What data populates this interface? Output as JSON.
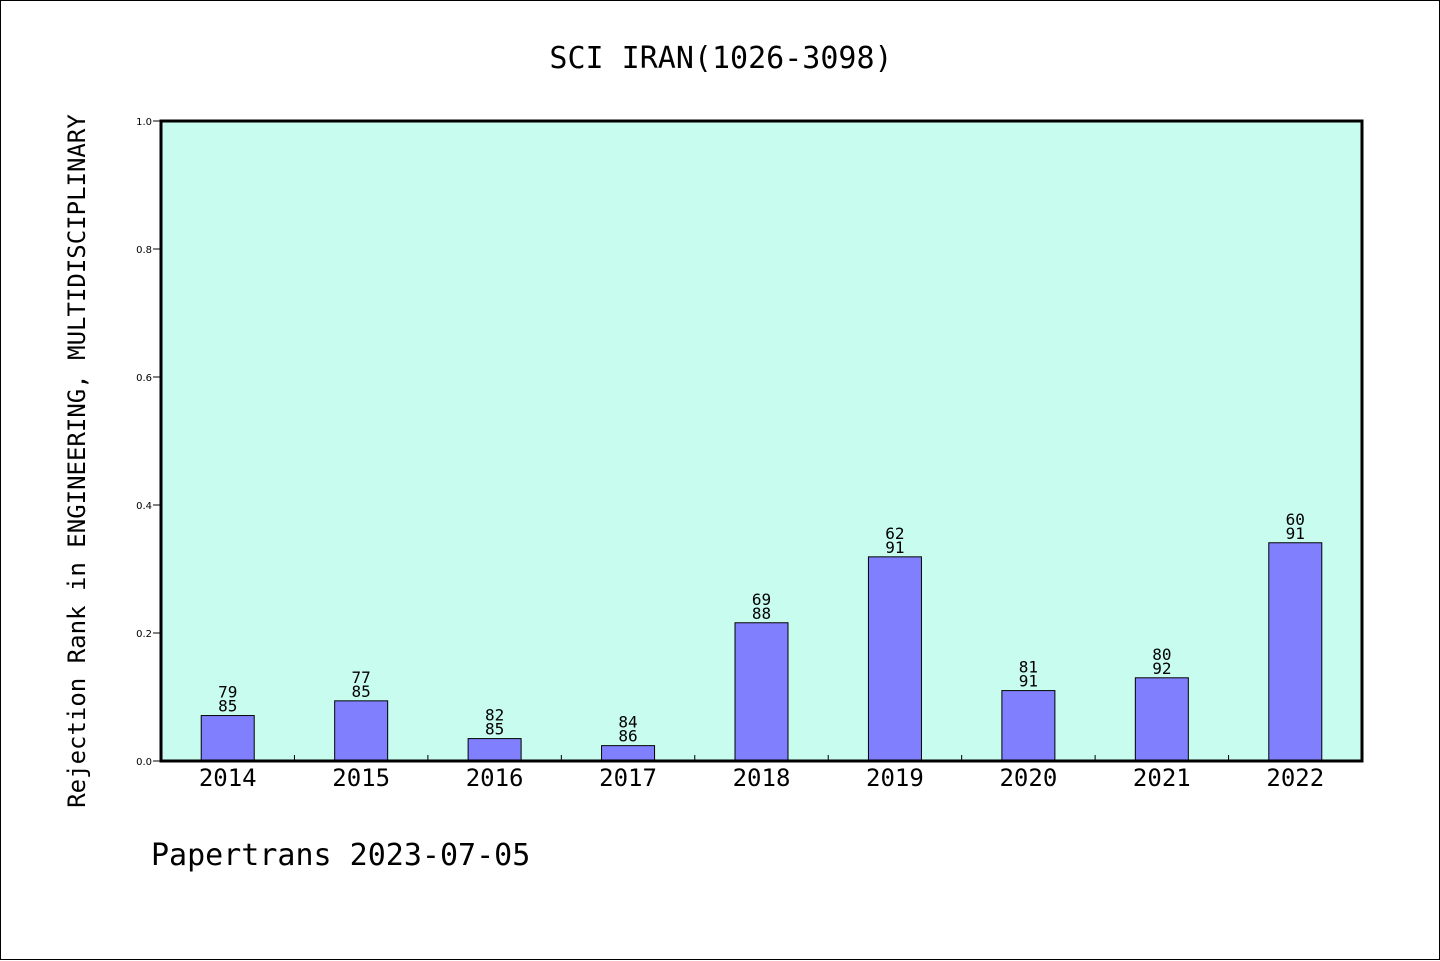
{
  "chart_data": {
    "type": "bar",
    "title": "SCI IRAN(1026-3098)",
    "ylabel": "Rejection Rank in ENGINEERING, MULTIDISCIPLINARY",
    "xlabel": "",
    "ylim": [
      0,
      1.0
    ],
    "yticks": [
      "0.0",
      "0.2",
      "0.4",
      "0.6",
      "0.8",
      "1.0"
    ],
    "categories": [
      "2014",
      "2015",
      "2016",
      "2017",
      "2018",
      "2019",
      "2020",
      "2021",
      "2022"
    ],
    "values": [
      0.071,
      0.094,
      0.035,
      0.024,
      0.216,
      0.319,
      0.11,
      0.13,
      0.341
    ],
    "labels_top": [
      "79",
      "77",
      "82",
      "84",
      "69",
      "62",
      "81",
      "80",
      "60"
    ],
    "labels_bottom": [
      "85",
      "85",
      "85",
      "86",
      "88",
      "91",
      "91",
      "92",
      "91"
    ],
    "grid": false,
    "colors": {
      "plot_background": "#c8fcee",
      "bar_fill": "#8080ff",
      "bar_stroke": "#000000"
    }
  },
  "footer": "Papertrans 2023-07-05"
}
